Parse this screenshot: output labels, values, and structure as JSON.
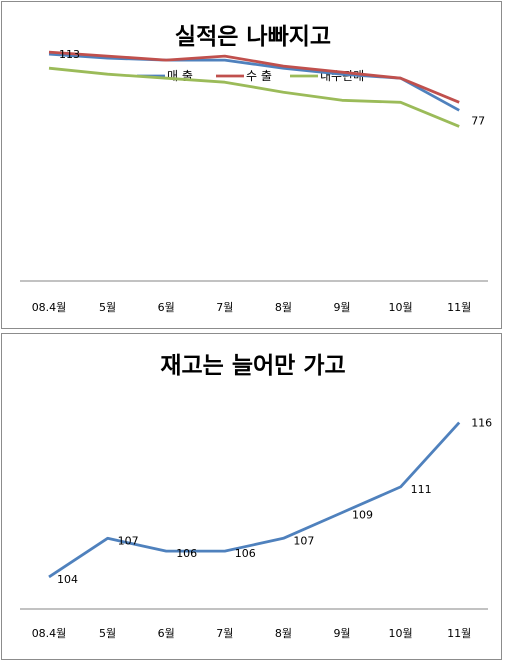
{
  "chart_data": [
    {
      "type": "line",
      "title": "실적은 나빠지고",
      "categories": [
        "08.4월",
        "5월",
        "6월",
        "7월",
        "8월",
        "9월",
        "10월",
        "11월"
      ],
      "series": [
        {
          "name": "매 출",
          "color": "#4f81bd",
          "values": [
            113,
            111,
            110,
            110,
            106,
            103,
            101,
            85
          ]
        },
        {
          "name": "수 출",
          "color": "#c0504d",
          "values": [
            114,
            112,
            110,
            112,
            107,
            104,
            101,
            89
          ]
        },
        {
          "name": "내수판매",
          "color": "#9bbb59",
          "values": [
            106,
            103,
            101,
            99,
            94,
            90,
            89,
            77
          ]
        }
      ],
      "data_labels": {
        "first": "113",
        "last": "77"
      },
      "ylim": [
        0,
        125
      ],
      "legend": "top",
      "grid": false
    },
    {
      "type": "line",
      "title": "재고는 늘어만 가고",
      "categories": [
        "08.4월",
        "5월",
        "6월",
        "7월",
        "8월",
        "9월",
        "10월",
        "11월"
      ],
      "series": [
        {
          "color": "#4f81bd",
          "values": [
            104,
            107,
            106,
            106,
            107,
            109,
            111,
            116
          ],
          "labels": [
            "104",
            "107",
            "106",
            "106",
            "107",
            "109",
            "111",
            "116"
          ]
        }
      ],
      "ylim": [
        101.5,
        119
      ],
      "legend": "none",
      "grid": false
    }
  ]
}
